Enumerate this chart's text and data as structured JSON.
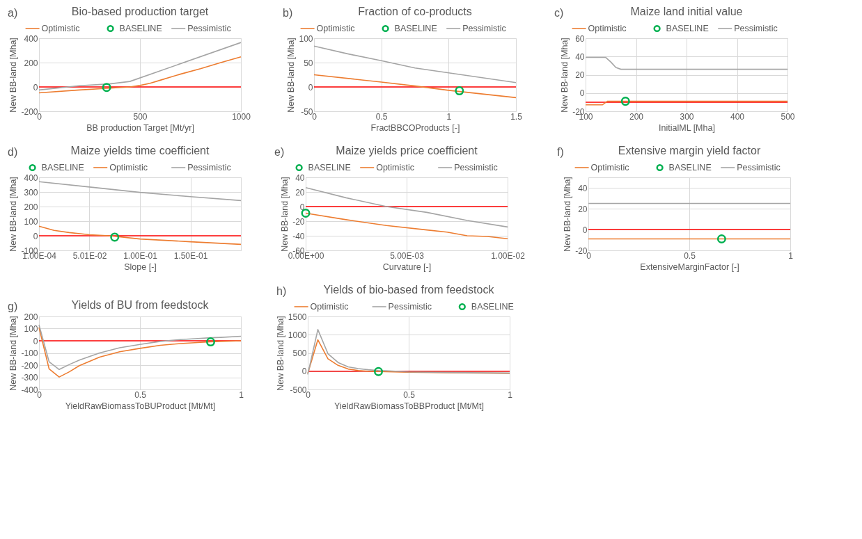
{
  "chart_data": [
    {
      "type": "line",
      "title": "Bio-based production target",
      "annotations": [
        "a)"
      ],
      "xlabel": "BB production Target [Mt/yr]",
      "ylabel": "New BB-land [Mha]",
      "xlim": [
        0,
        1000
      ],
      "xticks": [
        0,
        500,
        1000
      ],
      "ylim": [
        -200,
        400
      ],
      "yticks": [
        -200,
        0,
        200,
        400
      ],
      "grid": true,
      "legend": "top",
      "ref_lines": [
        {
          "axis": "y",
          "value": 0,
          "color": "#ff0000"
        }
      ],
      "series": [
        {
          "name": "Optimistic",
          "color": "#ed7d31",
          "x": [
            0,
            200,
            350,
            450,
            500,
            550,
            600,
            700,
            800,
            900,
            1000
          ],
          "values": [
            -49,
            -25,
            -10,
            0,
            12,
            30,
            55,
            105,
            150,
            200,
            247
          ]
        },
        {
          "name": "BASELINE",
          "color": "#00b050",
          "type": "scatter",
          "marker": "circle",
          "x": [
            335
          ],
          "values": [
            -4
          ]
        },
        {
          "name": "Pessimistic",
          "color": "#a5a5a5",
          "x": [
            0,
            200,
            350,
            450,
            1000
          ],
          "values": [
            -25,
            10,
            25,
            45,
            365
          ]
        }
      ]
    },
    {
      "type": "line",
      "title": "Fraction of co-products",
      "annotations": [
        "b)"
      ],
      "xlabel": "FractBBCOProducts [-]",
      "ylabel": "New BB-land [Mha]",
      "xlim": [
        0,
        1.5
      ],
      "xticks": [
        0,
        0.5,
        1,
        1.5
      ],
      "ylim": [
        -50,
        100
      ],
      "yticks": [
        -50,
        0,
        50,
        100
      ],
      "grid": true,
      "legend": "top",
      "ref_lines": [
        {
          "axis": "y",
          "value": 0,
          "color": "#ff0000"
        }
      ],
      "series": [
        {
          "name": "Optimistic",
          "color": "#ed7d31",
          "x": [
            0,
            0.5,
            0.75,
            1,
            1.5
          ],
          "values": [
            25,
            10,
            2,
            -7,
            -22
          ]
        },
        {
          "name": "BASELINE",
          "color": "#00b050",
          "type": "scatter",
          "marker": "circle",
          "x": [
            1.08
          ],
          "values": [
            -8
          ]
        },
        {
          "name": "Pessimistic",
          "color": "#a5a5a5",
          "x": [
            0,
            0.25,
            0.5,
            0.75,
            1,
            1.25,
            1.5
          ],
          "values": [
            84,
            68,
            54,
            39,
            29,
            19,
            9
          ]
        }
      ]
    },
    {
      "type": "line",
      "title": "Maize land initial value",
      "annotations": [
        "c)"
      ],
      "xlabel": "InitialML [Mha]",
      "ylabel": "New BB-land [Mha]",
      "xlim": [
        100,
        500
      ],
      "xticks": [
        100,
        200,
        300,
        400,
        500
      ],
      "ylim": [
        -20,
        60
      ],
      "yticks": [
        -20,
        0,
        20,
        40,
        60
      ],
      "grid": true,
      "legend": "top",
      "ref_lines": [
        {
          "axis": "y",
          "value": -10,
          "color": "#ff0000"
        }
      ],
      "series": [
        {
          "name": "Optimistic",
          "color": "#ed7d31",
          "x": [
            100,
            133,
            143,
            500
          ],
          "values": [
            -13,
            -13,
            -9,
            -9
          ]
        },
        {
          "name": "BASELINE",
          "color": "#00b050",
          "type": "scatter",
          "marker": "circle",
          "x": [
            179
          ],
          "values": [
            -9
          ]
        },
        {
          "name": "Pessimistic",
          "color": "#a5a5a5",
          "x": [
            100,
            140,
            150,
            160,
            170,
            500
          ],
          "values": [
            39,
            39,
            34,
            28,
            26,
            26
          ]
        }
      ]
    },
    {
      "type": "line",
      "title": "Maize yields time coefficient",
      "annotations": [
        "d)"
      ],
      "xlabel": "Slope [-]",
      "ylabel": "New BB-land [Mha]",
      "xlim": [
        0.0001,
        0.2001
      ],
      "xticks": [
        {
          "value": 0.0001,
          "label": "1.00E-04"
        },
        {
          "value": 0.0501,
          "label": "5.01E-02"
        },
        {
          "value": 0.1001,
          "label": "1.00E-01"
        },
        {
          "value": 0.1501,
          "label": "1.50E-01"
        }
      ],
      "ylim": [
        -100,
        400
      ],
      "yticks": [
        -100,
        0,
        100,
        200,
        300,
        400
      ],
      "grid": true,
      "legend": "top",
      "ref_lines": [
        {
          "axis": "y",
          "value": 0,
          "color": "#ff0000"
        }
      ],
      "series": [
        {
          "name": "BASELINE",
          "color": "#00b050",
          "type": "scatter",
          "marker": "circle",
          "x": [
            0.0751
          ],
          "values": [
            -9
          ]
        },
        {
          "name": "Optimistic",
          "color": "#ed7d31",
          "x": [
            0.0001,
            0.015,
            0.03,
            0.0501,
            0.07,
            0.1001,
            0.1501,
            0.2001
          ],
          "values": [
            65,
            37,
            22,
            7,
            0,
            -22,
            -41,
            -59
          ]
        },
        {
          "name": "Pessimistic",
          "color": "#a5a5a5",
          "x": [
            0.0001,
            0.0501,
            0.1001,
            0.1501,
            0.2001
          ],
          "values": [
            370,
            334,
            297,
            268,
            241
          ]
        }
      ]
    },
    {
      "type": "line",
      "title": "Maize yields price coefficient",
      "annotations": [
        "e)"
      ],
      "xlabel": "Curvature [-]",
      "ylabel": "New BB-land [Mha]",
      "xlim": [
        0,
        0.01
      ],
      "xticks": [
        {
          "value": 0,
          "label": "0.00E+00"
        },
        {
          "value": 0.005,
          "label": "5.00E-03"
        },
        {
          "value": 0.01,
          "label": "1.00E-02"
        }
      ],
      "ylim": [
        -60,
        40
      ],
      "yticks": [
        -60,
        -40,
        -20,
        0,
        20,
        40
      ],
      "grid": true,
      "legend": "top",
      "ref_lines": [
        {
          "axis": "y",
          "value": 0,
          "color": "#ff0000"
        }
      ],
      "series": [
        {
          "name": "BASELINE",
          "color": "#00b050",
          "type": "scatter",
          "marker": "circle",
          "x": [
            0
          ],
          "values": [
            -9
          ]
        },
        {
          "name": "Optimistic",
          "color": "#ed7d31",
          "x": [
            0,
            0.002,
            0.004,
            0.006,
            0.007,
            0.008,
            0.009,
            0.01
          ],
          "values": [
            -9,
            -18,
            -26,
            -32,
            -35,
            -40,
            -41,
            -44
          ]
        },
        {
          "name": "Pessimistic",
          "color": "#a5a5a5",
          "x": [
            0,
            0.002,
            0.004,
            0.006,
            0.008,
            0.01
          ],
          "values": [
            26,
            12,
            0,
            -8,
            -19,
            -28
          ]
        }
      ]
    },
    {
      "type": "line",
      "title": "Extensive margin yield factor",
      "annotations": [
        "f)"
      ],
      "xlabel": "ExtensiveMarginFactor [-]",
      "ylabel": "New BB-land [Mha]",
      "xlim": [
        0,
        1
      ],
      "xticks": [
        0,
        0.5,
        1
      ],
      "ylim": [
        -20,
        50
      ],
      "yticks": [
        -20,
        0,
        20,
        40
      ],
      "grid": true,
      "legend": "top",
      "ref_lines": [
        {
          "axis": "y",
          "value": 0,
          "color": "#ff0000"
        }
      ],
      "series": [
        {
          "name": "Optimistic",
          "color": "#ed7d31",
          "x": [
            0,
            1
          ],
          "values": [
            -9,
            -9
          ]
        },
        {
          "name": "BASELINE",
          "color": "#00b050",
          "type": "scatter",
          "marker": "circle",
          "x": [
            0.66
          ],
          "values": [
            -9
          ]
        },
        {
          "name": "Pessimistic",
          "color": "#a5a5a5",
          "x": [
            0,
            1
          ],
          "values": [
            25,
            25
          ]
        }
      ]
    },
    {
      "type": "line",
      "title": "Yields of BU from feedstock",
      "annotations": [
        "g)"
      ],
      "xlabel": "YieldRawBiomassToBUProduct [Mt/Mt]",
      "ylabel": "New BB-land [Mha]",
      "xlim": [
        0,
        1
      ],
      "xticks": [
        0,
        0.5,
        1
      ],
      "ylim": [
        -400,
        200
      ],
      "yticks": [
        -400,
        -300,
        -200,
        -100,
        0,
        100,
        200
      ],
      "grid": true,
      "ref_lines": [
        {
          "axis": "y",
          "value": 0,
          "color": "#ff0000"
        }
      ],
      "series": [
        {
          "color": "#ed7d31",
          "x": [
            0,
            0.05,
            0.1,
            0.15,
            0.2,
            0.3,
            0.4,
            0.5,
            0.6,
            0.7,
            0.8,
            0.85,
            0.9,
            1
          ],
          "values": [
            110,
            -231,
            -298,
            -255,
            -204,
            -134,
            -90,
            -62,
            -37,
            -23,
            -13,
            -9,
            -5,
            0
          ]
        },
        {
          "color": "#a5a5a5",
          "x": [
            0,
            0.05,
            0.1,
            0.15,
            0.2,
            0.3,
            0.4,
            0.5,
            0.6,
            0.7,
            0.8,
            0.85,
            0.9,
            1
          ],
          "values": [
            132,
            -172,
            -236,
            -195,
            -159,
            -100,
            -57,
            -30,
            -5,
            10,
            20,
            25,
            28,
            37
          ]
        },
        {
          "color": "#00b050",
          "type": "scatter",
          "marker": "circle",
          "x": [
            0.85
          ],
          "values": [
            -9
          ]
        }
      ]
    },
    {
      "type": "line",
      "title": "Yields of bio-based from feedstock",
      "annotations": [
        "h)"
      ],
      "xlabel": "YieldRawBiomassToBBProduct [Mt/Mt]",
      "ylabel": "New BB-land [Mha]",
      "xlim": [
        0,
        1
      ],
      "xticks": [
        0,
        0.5,
        1
      ],
      "ylim": [
        -500,
        1500
      ],
      "yticks": [
        -500,
        0,
        500,
        1000,
        1500
      ],
      "grid": true,
      "legend": "top",
      "ref_lines": [
        {
          "axis": "y",
          "value": 0,
          "color": "#ff0000"
        }
      ],
      "series": [
        {
          "name": "Optimistic",
          "color": "#ed7d31",
          "x": [
            0,
            0.05,
            0.1,
            0.15,
            0.2,
            0.25,
            0.3,
            0.35,
            0.5,
            0.7,
            1
          ],
          "values": [
            -60,
            860,
            340,
            160,
            60,
            20,
            0,
            -10,
            -30,
            -40,
            -60
          ]
        },
        {
          "name": "Pessimistic",
          "color": "#a5a5a5",
          "x": [
            0,
            0.05,
            0.1,
            0.15,
            0.2,
            0.25,
            0.3,
            0.35,
            0.4,
            0.5,
            0.6,
            0.8,
            1
          ],
          "values": [
            -90,
            1140,
            480,
            240,
            120,
            70,
            40,
            20,
            10,
            -20,
            -30,
            -40,
            -50
          ]
        },
        {
          "name": "BASELINE",
          "color": "#00b050",
          "type": "scatter",
          "marker": "circle",
          "x": [
            0.35
          ],
          "values": [
            -10
          ]
        }
      ]
    }
  ]
}
